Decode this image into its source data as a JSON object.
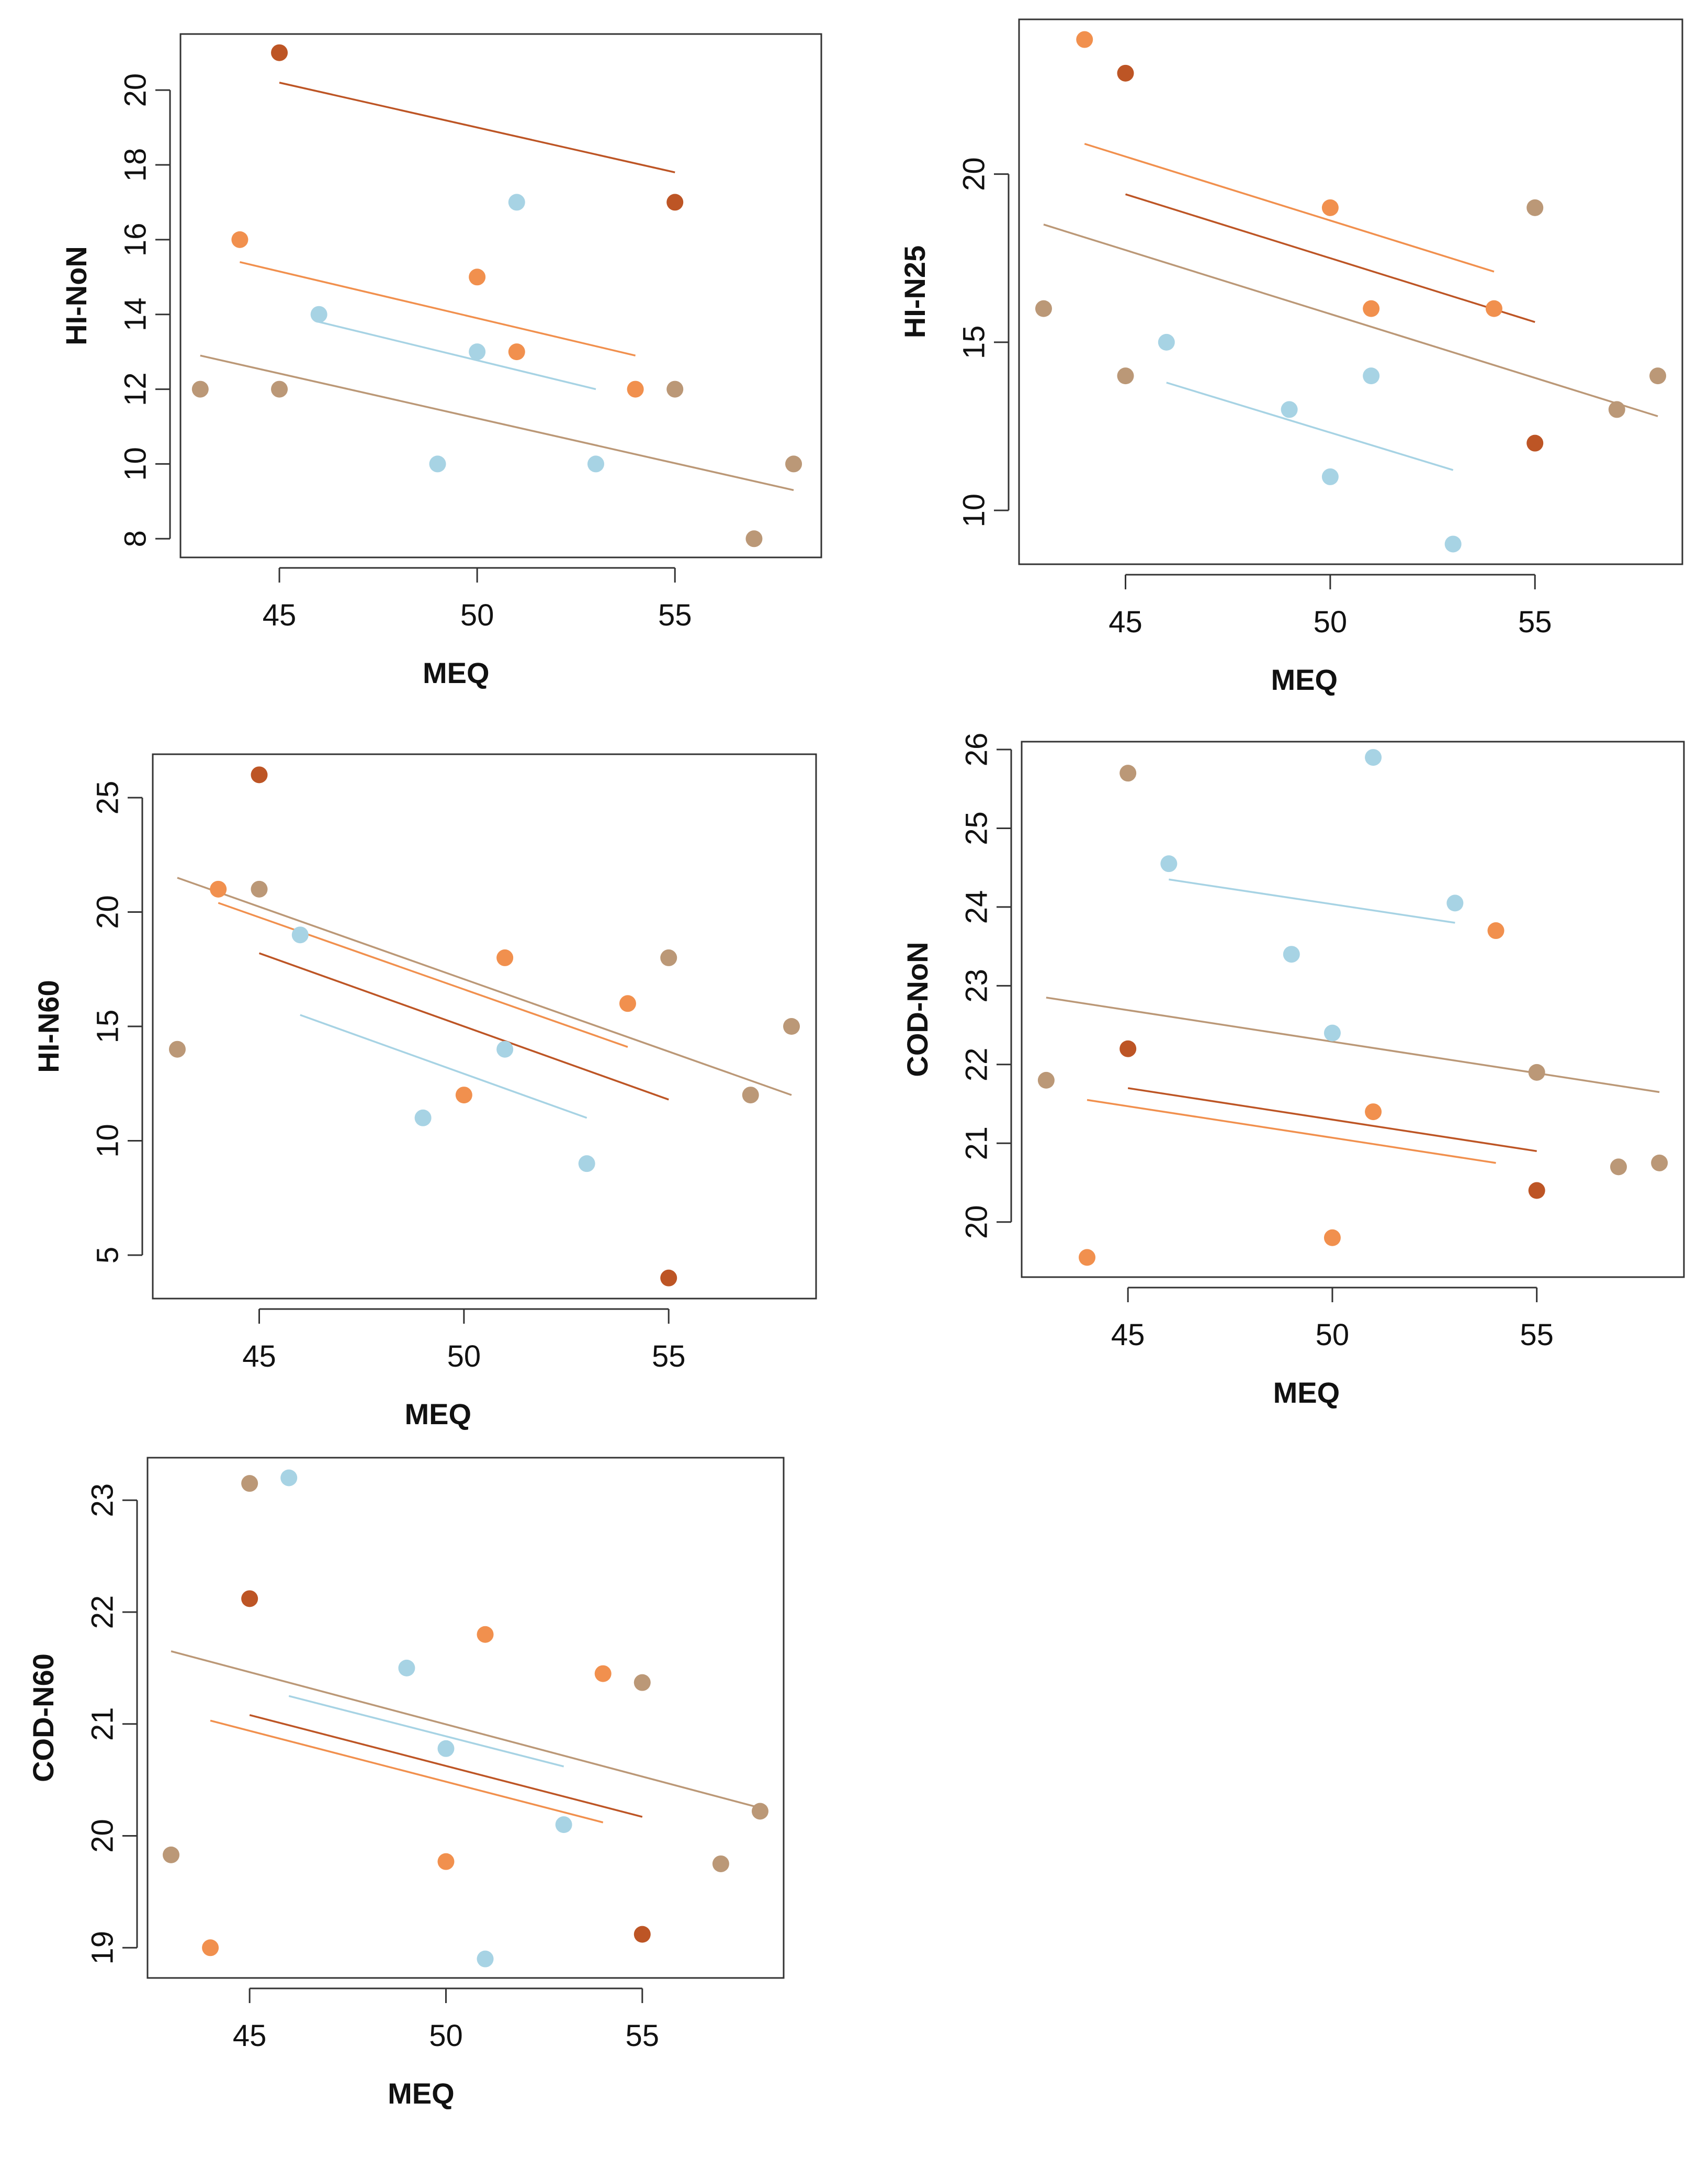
{
  "colors": {
    "blue": "#a7d3e4",
    "orange": "#f1904e",
    "rust": "#bd5525",
    "tan": "#bb9877"
  },
  "chart_data": [
    {
      "type": "scatter",
      "title": "",
      "xlabel": "MEQ",
      "ylabel": "HI-NoN",
      "xlim": [
        42.5,
        58.7
      ],
      "ylim": [
        7.5,
        21.5
      ],
      "xticks": [
        45,
        50,
        55
      ],
      "yticks": [
        8,
        10,
        12,
        14,
        16,
        18,
        20
      ],
      "series": [
        {
          "name": "blue",
          "color": "#a7d3e4",
          "points": [
            [
              46,
              14
            ],
            [
              49,
              10
            ],
            [
              50,
              13
            ],
            [
              51,
              17
            ],
            [
              53,
              10
            ]
          ],
          "fit": [
            [
              46,
              13.8
            ],
            [
              53,
              12.0
            ]
          ]
        },
        {
          "name": "orange",
          "color": "#f1904e",
          "points": [
            [
              44,
              16
            ],
            [
              50,
              15
            ],
            [
              51,
              13
            ],
            [
              54,
              12
            ]
          ],
          "fit": [
            [
              44,
              15.4
            ],
            [
              54,
              12.9
            ]
          ]
        },
        {
          "name": "rust",
          "color": "#bd5525",
          "points": [
            [
              45,
              21
            ],
            [
              55,
              17
            ]
          ],
          "fit": [
            [
              45,
              20.2
            ],
            [
              55,
              17.8
            ]
          ]
        },
        {
          "name": "tan",
          "color": "#bb9877",
          "points": [
            [
              43,
              12
            ],
            [
              45,
              12
            ],
            [
              55,
              12
            ],
            [
              57,
              8
            ],
            [
              58,
              10
            ]
          ],
          "fit": [
            [
              43,
              12.9
            ],
            [
              58,
              9.3
            ]
          ]
        }
      ]
    },
    {
      "type": "scatter",
      "title": "",
      "xlabel": "MEQ",
      "ylabel": "HI-N25",
      "xlim": [
        42.4,
        58.6
      ],
      "ylim": [
        8.4,
        24.6
      ],
      "xticks": [
        45,
        50,
        55
      ],
      "yticks": [
        10,
        15,
        20
      ],
      "series": [
        {
          "name": "blue",
          "color": "#a7d3e4",
          "points": [
            [
              46,
              15
            ],
            [
              49,
              13
            ],
            [
              50,
              11
            ],
            [
              51,
              14
            ],
            [
              53,
              9
            ]
          ],
          "fit": [
            [
              46,
              13.8
            ],
            [
              53,
              11.2
            ]
          ]
        },
        {
          "name": "orange",
          "color": "#f1904e",
          "points": [
            [
              44,
              24
            ],
            [
              50,
              19
            ],
            [
              51,
              16
            ],
            [
              54,
              16
            ]
          ],
          "fit": [
            [
              44,
              20.9
            ],
            [
              54,
              17.1
            ]
          ]
        },
        {
          "name": "rust",
          "color": "#bd5525",
          "points": [
            [
              45,
              23
            ],
            [
              55,
              12
            ]
          ],
          "fit": [
            [
              45,
              19.4
            ],
            [
              55,
              15.6
            ]
          ]
        },
        {
          "name": "tan",
          "color": "#bb9877",
          "points": [
            [
              43,
              16
            ],
            [
              45,
              14
            ],
            [
              55,
              19
            ],
            [
              57,
              13
            ],
            [
              58,
              14
            ]
          ],
          "fit": [
            [
              43,
              18.5
            ],
            [
              58,
              12.8
            ]
          ]
        }
      ]
    },
    {
      "type": "scatter",
      "title": "",
      "xlabel": "MEQ",
      "ylabel": "HI-N60",
      "xlim": [
        42.4,
        58.6
      ],
      "ylim": [
        3.1,
        26.9
      ],
      "xticks": [
        45,
        50,
        55
      ],
      "yticks": [
        5,
        10,
        15,
        20,
        25
      ],
      "series": [
        {
          "name": "blue",
          "color": "#a7d3e4",
          "points": [
            [
              46,
              19
            ],
            [
              49,
              11
            ],
            [
              51,
              14
            ],
            [
              53,
              9
            ]
          ],
          "fit": [
            [
              46,
              15.5
            ],
            [
              53,
              11.0
            ]
          ]
        },
        {
          "name": "orange",
          "color": "#f1904e",
          "points": [
            [
              44,
              21
            ],
            [
              50,
              12
            ],
            [
              51,
              18
            ],
            [
              54,
              16
            ]
          ],
          "fit": [
            [
              44,
              20.4
            ],
            [
              54,
              14.1
            ]
          ]
        },
        {
          "name": "rust",
          "color": "#bd5525",
          "points": [
            [
              45,
              26
            ],
            [
              55,
              4
            ]
          ],
          "fit": [
            [
              45,
              18.2
            ],
            [
              55,
              11.8
            ]
          ]
        },
        {
          "name": "tan",
          "color": "#bb9877",
          "points": [
            [
              43,
              14
            ],
            [
              45,
              21
            ],
            [
              55,
              18
            ],
            [
              57,
              12
            ],
            [
              58,
              15
            ]
          ],
          "fit": [
            [
              43,
              21.5
            ],
            [
              58,
              12.0
            ]
          ]
        }
      ]
    },
    {
      "type": "scatter",
      "title": "",
      "xlabel": "MEQ",
      "ylabel": "COD-NoN",
      "xlim": [
        42.4,
        58.6
      ],
      "ylim": [
        19.3,
        26.1
      ],
      "xticks": [
        45,
        50,
        55
      ],
      "yticks": [
        20,
        21,
        22,
        23,
        24,
        25,
        26
      ],
      "series": [
        {
          "name": "blue",
          "color": "#a7d3e4",
          "points": [
            [
              46,
              24.55
            ],
            [
              49,
              23.4
            ],
            [
              50,
              22.4
            ],
            [
              51,
              25.9
            ],
            [
              53,
              24.05
            ]
          ],
          "fit": [
            [
              46,
              24.35
            ],
            [
              53,
              23.8
            ]
          ]
        },
        {
          "name": "orange",
          "color": "#f1904e",
          "points": [
            [
              44,
              19.55
            ],
            [
              50,
              19.8
            ],
            [
              51,
              21.4
            ],
            [
              54,
              23.7
            ]
          ],
          "fit": [
            [
              44,
              21.55
            ],
            [
              54,
              20.75
            ]
          ]
        },
        {
          "name": "rust",
          "color": "#bd5525",
          "points": [
            [
              45,
              22.2
            ],
            [
              55,
              20.4
            ]
          ],
          "fit": [
            [
              45,
              21.7
            ],
            [
              55,
              20.9
            ]
          ]
        },
        {
          "name": "tan",
          "color": "#bb9877",
          "points": [
            [
              43,
              21.8
            ],
            [
              45,
              25.7
            ],
            [
              55,
              21.9
            ],
            [
              57,
              20.7
            ],
            [
              58,
              20.75
            ]
          ],
          "fit": [
            [
              43,
              22.85
            ],
            [
              58,
              21.65
            ]
          ]
        }
      ]
    },
    {
      "type": "scatter",
      "title": "",
      "xlabel": "MEQ",
      "ylabel": "COD-N60",
      "xlim": [
        42.4,
        58.6
      ],
      "ylim": [
        18.73,
        23.38
      ],
      "xticks": [
        45,
        50,
        55
      ],
      "yticks": [
        19,
        20,
        21,
        22,
        23
      ],
      "series": [
        {
          "name": "blue",
          "color": "#a7d3e4",
          "points": [
            [
              46,
              23.2
            ],
            [
              49,
              21.5
            ],
            [
              50,
              20.78
            ],
            [
              51,
              18.9
            ],
            [
              53,
              20.1
            ]
          ],
          "fit": [
            [
              46,
              21.25
            ],
            [
              53,
              20.62
            ]
          ]
        },
        {
          "name": "orange",
          "color": "#f1904e",
          "points": [
            [
              44,
              19.0
            ],
            [
              50,
              19.77
            ],
            [
              51,
              21.8
            ],
            [
              54,
              21.45
            ]
          ],
          "fit": [
            [
              44,
              21.03
            ],
            [
              54,
              20.12
            ]
          ]
        },
        {
          "name": "rust",
          "color": "#bd5525",
          "points": [
            [
              45,
              22.12
            ],
            [
              55,
              19.12
            ]
          ],
          "fit": [
            [
              45,
              21.08
            ],
            [
              55,
              20.17
            ]
          ]
        },
        {
          "name": "tan",
          "color": "#bb9877",
          "points": [
            [
              43,
              19.83
            ],
            [
              45,
              23.15
            ],
            [
              55,
              21.37
            ],
            [
              57,
              19.75
            ],
            [
              58,
              20.22
            ]
          ],
          "fit": [
            [
              43,
              21.65
            ],
            [
              58,
              20.25
            ]
          ]
        }
      ]
    }
  ]
}
